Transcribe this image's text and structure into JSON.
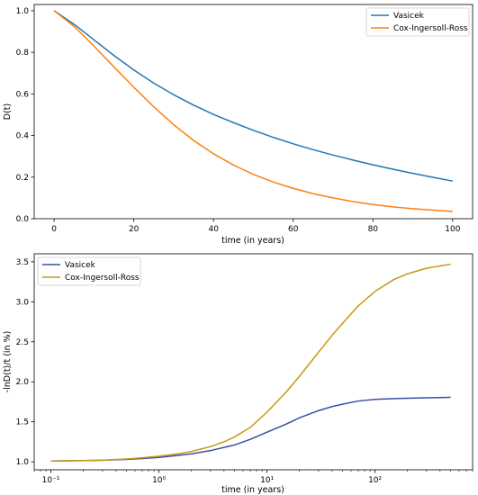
{
  "chart_data": [
    {
      "type": "line",
      "title": "",
      "xlabel": "time (in years)",
      "ylabel": "D(t)",
      "xlim": [
        -5,
        105
      ],
      "ylim": [
        0.0,
        1.03
      ],
      "xscale": "linear",
      "xticks": [
        0,
        20,
        40,
        60,
        80,
        100
      ],
      "xtick_labels": [
        "0",
        "20",
        "40",
        "60",
        "80",
        "100"
      ],
      "yticks": [
        0.0,
        0.2,
        0.4,
        0.6,
        0.8,
        1.0
      ],
      "ytick_labels": [
        "0.0",
        "0.2",
        "0.4",
        "0.6",
        "0.8",
        "1.0"
      ],
      "grid": false,
      "legend_position": "top-right",
      "x": [
        0,
        5,
        10,
        15,
        20,
        25,
        30,
        35,
        40,
        45,
        50,
        55,
        60,
        65,
        70,
        75,
        80,
        85,
        90,
        95,
        100
      ],
      "series": [
        {
          "name": "Vasicek",
          "color": "#1f77b4",
          "values": [
            1.0,
            0.935,
            0.86,
            0.785,
            0.715,
            0.652,
            0.596,
            0.546,
            0.501,
            0.462,
            0.425,
            0.391,
            0.36,
            0.332,
            0.306,
            0.282,
            0.259,
            0.238,
            0.218,
            0.199,
            0.181
          ]
        },
        {
          "name": "Cox-Ingersoll-Ross",
          "color": "#ff7f0e",
          "values": [
            1.0,
            0.925,
            0.83,
            0.73,
            0.632,
            0.538,
            0.452,
            0.376,
            0.312,
            0.258,
            0.213,
            0.176,
            0.146,
            0.12,
            0.1,
            0.082,
            0.068,
            0.057,
            0.048,
            0.041,
            0.035
          ]
        }
      ]
    },
    {
      "type": "line",
      "title": "",
      "xlabel": "time (in years)",
      "ylabel": "-lnD(t)/t (in %)",
      "xlim": [
        0.07,
        800
      ],
      "ylim": [
        0.9,
        3.6
      ],
      "xscale": "log",
      "xticks": [
        0.1,
        1,
        10,
        100
      ],
      "xtick_labels": [
        "10⁻¹",
        "10⁰",
        "10¹",
        "10²"
      ],
      "yticks": [
        1.0,
        1.5,
        2.0,
        2.5,
        3.0,
        3.5
      ],
      "ytick_labels": [
        "1.0",
        "1.5",
        "2.0",
        "2.5",
        "3.0",
        "3.5"
      ],
      "grid": false,
      "legend_position": "top-left",
      "x": [
        0.1,
        0.2,
        0.3,
        0.5,
        0.7,
        1,
        1.5,
        2,
        3,
        4,
        5,
        7,
        10,
        15,
        20,
        30,
        40,
        50,
        70,
        100,
        150,
        200,
        300,
        500
      ],
      "series": [
        {
          "name": "Vasicek",
          "color": "#3b4ea3",
          "values": [
            1.01,
            1.015,
            1.02,
            1.03,
            1.04,
            1.055,
            1.08,
            1.1,
            1.14,
            1.18,
            1.21,
            1.28,
            1.37,
            1.47,
            1.55,
            1.64,
            1.69,
            1.72,
            1.76,
            1.78,
            1.79,
            1.795,
            1.8,
            1.805
          ]
        },
        {
          "name": "Cox-Ingersoll-Ross",
          "color": "#c49a12",
          "values": [
            1.01,
            1.015,
            1.02,
            1.035,
            1.05,
            1.07,
            1.1,
            1.13,
            1.19,
            1.25,
            1.31,
            1.43,
            1.62,
            1.87,
            2.07,
            2.37,
            2.58,
            2.73,
            2.95,
            3.13,
            3.28,
            3.35,
            3.42,
            3.47
          ]
        }
      ]
    }
  ]
}
